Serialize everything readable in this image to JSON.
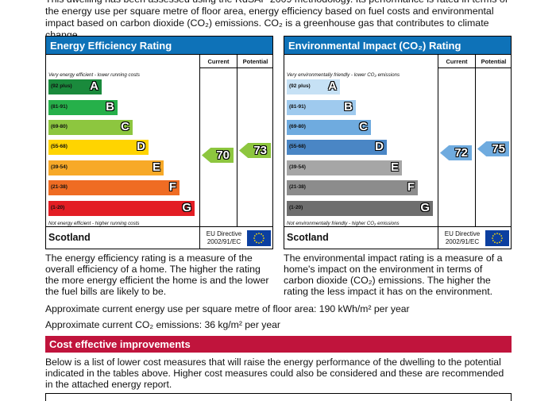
{
  "intro": "This dwelling has been assessed using the RdSAP 2009 methodology. Its performance is rated in terms of the energy use per square metre of floor area, energy efficiency based on fuel costs and environmental impact based on carbon dioxide (CO₂) emissions. CO₂ is a greenhouse gas that contributes to climate change.",
  "colors": {
    "header_blue": "#0e72b8",
    "improvements_red": "#c0143c",
    "ee_bands": [
      "#1a8a3c",
      "#26b04a",
      "#8dc63f",
      "#ffd400",
      "#f7a928",
      "#ef6c23",
      "#e31d24"
    ],
    "ei_bands": [
      "#c6e1f5",
      "#9fcaee",
      "#6fabdf",
      "#4a86c5",
      "#a6a6a6",
      "#8c8c8c",
      "#6e6e6e"
    ]
  },
  "energy_efficiency": {
    "title": "Energy Efficiency Rating",
    "current_label": "Current",
    "potential_label": "Potential",
    "top_text": "Very energy efficient - lower running costs",
    "bottom_text": "Not energy efficient - higher running costs",
    "bands": [
      {
        "range": "(92 plus)",
        "letter": "A"
      },
      {
        "range": "(81-91)",
        "letter": "B"
      },
      {
        "range": "(69-80)",
        "letter": "C"
      },
      {
        "range": "(55-68)",
        "letter": "D"
      },
      {
        "range": "(39-54)",
        "letter": "E"
      },
      {
        "range": "(21-38)",
        "letter": "F"
      },
      {
        "range": "(1-20)",
        "letter": "G"
      }
    ],
    "current": "70",
    "potential": "73",
    "country": "Scotland",
    "directive": "EU Directive 2002/91/EC",
    "description": "The energy efficiency rating is a measure of the overall efficiency of a home. The higher the rating the more energy efficient the home is and the lower the fuel bills are likely to be."
  },
  "environmental_impact": {
    "title": "Environmental Impact (CO₂) Rating",
    "current_label": "Current",
    "potential_label": "Potential",
    "top_text": "Very environmentally friendly - lower CO₂ emissions",
    "bottom_text": "Not environmentally friendly - higher CO₂ emissions",
    "bands": [
      {
        "range": "(92 plus)",
        "letter": "A"
      },
      {
        "range": "(81-91)",
        "letter": "B"
      },
      {
        "range": "(69-80)",
        "letter": "C"
      },
      {
        "range": "(55-68)",
        "letter": "D"
      },
      {
        "range": "(39-54)",
        "letter": "E"
      },
      {
        "range": "(21-38)",
        "letter": "F"
      },
      {
        "range": "(1-20)",
        "letter": "G"
      }
    ],
    "current": "72",
    "potential": "75",
    "country": "Scotland",
    "directive": "EU Directive 2002/91/EC",
    "description": "The environmental impact rating is a measure of a home's impact on the environment in terms of carbon dioxide (CO₂) emissions. The higher the rating the less impact it has on the environment."
  },
  "energy_use": "Approximate current energy use per square metre of floor area: 190 kWh/m² per year",
  "co2_emissions": "Approximate current CO₂ emissions: 36 kg/m² per year",
  "improvements": {
    "title": "Cost effective improvements",
    "text": "Below is a list of lower cost measures that will raise the energy performance of the dwelling to the potential indicated in the tables above. Higher cost measures could also be considered and these are recommended in the attached energy report."
  }
}
